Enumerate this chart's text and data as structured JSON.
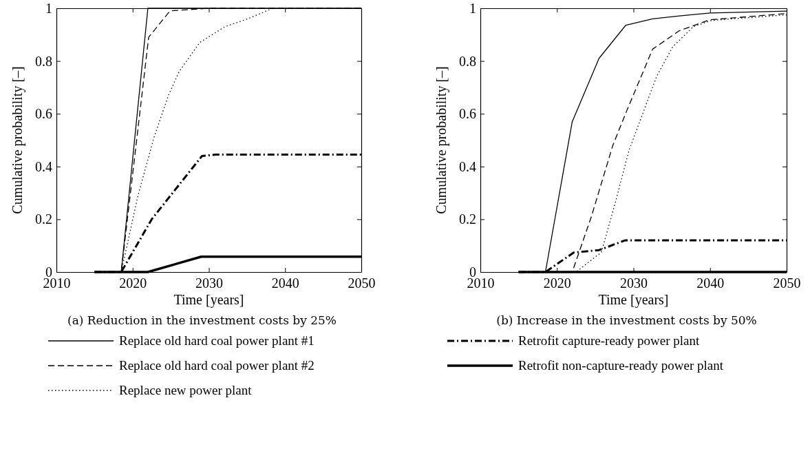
{
  "chart_data": [
    {
      "type": "line",
      "title": "(a) Reduction in the investment costs by 25%",
      "xlabel": "Time [years]",
      "ylabel": "Cumulative probability [–]",
      "xlim": [
        2010,
        2050
      ],
      "xticks": [
        2010,
        2020,
        2030,
        2040,
        2050
      ],
      "ylim": [
        0,
        1
      ],
      "yticks": [
        0,
        0.2,
        0.4,
        0.6,
        0.8,
        1
      ],
      "grid": false,
      "legend": "bottom",
      "series": [
        {
          "name": "Replace old hard coal power plant #1",
          "color": "#000000",
          "line_style": "solid",
          "x": [
            2015,
            2018.5,
            2022,
            2050
          ],
          "values": [
            0,
            0,
            1,
            1
          ]
        },
        {
          "name": "Replace old hard coal power plant #2",
          "color": "#000000",
          "line_style": "dashed",
          "x": [
            2015,
            2018.5,
            2022.1,
            2024.9,
            2030,
            2050
          ],
          "values": [
            0,
            0,
            0.89,
            0.99,
            1,
            1
          ]
        },
        {
          "name": "Replace new power plant",
          "color": "#000000",
          "line_style": "dotted",
          "x": [
            2015,
            2018.5,
            2020.7,
            2022.8,
            2024.7,
            2026.1,
            2028.8,
            2032.1,
            2035.1,
            2038.4,
            2050
          ],
          "values": [
            0,
            0,
            0.29,
            0.51,
            0.67,
            0.76,
            0.87,
            0.93,
            0.96,
            1,
            1
          ]
        },
        {
          "name": "Retrofit capture-ready power plant",
          "color": "#000000",
          "line_style": "dashdot",
          "x": [
            2015,
            2018.5,
            2022.5,
            2029.1,
            2030.9,
            2050
          ],
          "values": [
            0,
            0,
            0.2,
            0.44,
            0.445,
            0.445
          ]
        },
        {
          "name": "Retrofit non-capture-ready power plant",
          "color": "#000000",
          "line_style": "solid",
          "x": [
            2015,
            2022,
            2029,
            2050
          ],
          "values": [
            0,
            0,
            0.058,
            0.058
          ]
        }
      ]
    },
    {
      "type": "line",
      "title": "(b) Increase in the investment costs by 50%",
      "xlabel": "Time [years]",
      "ylabel": "Cumulative probability [–]",
      "xlim": [
        2010,
        2050
      ],
      "xticks": [
        2010,
        2020,
        2030,
        2040,
        2050
      ],
      "ylim": [
        0,
        1
      ],
      "yticks": [
        0,
        0.2,
        0.4,
        0.6,
        0.8,
        1
      ],
      "grid": false,
      "series": [
        {
          "color": "#000000",
          "line_style": "solid",
          "x": [
            2015,
            2018.5,
            2022,
            2025.5,
            2029,
            2032.5,
            2036,
            2040,
            2050
          ],
          "values": [
            0,
            0,
            0.57,
            0.81,
            0.936,
            0.96,
            0.971,
            0.982,
            0.989
          ]
        },
        {
          "color": "#000000",
          "line_style": "dashed",
          "x": [
            2015,
            2022,
            2024.5,
            2027.3,
            2029.1,
            2032.5,
            2036,
            2039.9,
            2050
          ],
          "values": [
            0,
            0,
            0.21,
            0.48,
            0.61,
            0.845,
            0.915,
            0.956,
            0.98
          ]
        },
        {
          "color": "#000000",
          "line_style": "dotted",
          "x": [
            2015,
            2022.5,
            2025.8,
            2027.6,
            2029.4,
            2031.2,
            2033,
            2035.1,
            2037.8,
            2040.2,
            2050
          ],
          "values": [
            0,
            0,
            0.075,
            0.26,
            0.46,
            0.6,
            0.74,
            0.853,
            0.93,
            0.954,
            0.975
          ]
        },
        {
          "color": "#000000",
          "line_style": "dashdot",
          "x": [
            2015,
            2018.5,
            2022.2,
            2025.5,
            2028.9,
            2050
          ],
          "values": [
            0,
            0,
            0.074,
            0.083,
            0.12,
            0.12
          ]
        },
        {
          "color": "#000000",
          "line_style": "solid",
          "x": [
            2015,
            2050
          ],
          "values": [
            0,
            0
          ]
        }
      ]
    }
  ]
}
